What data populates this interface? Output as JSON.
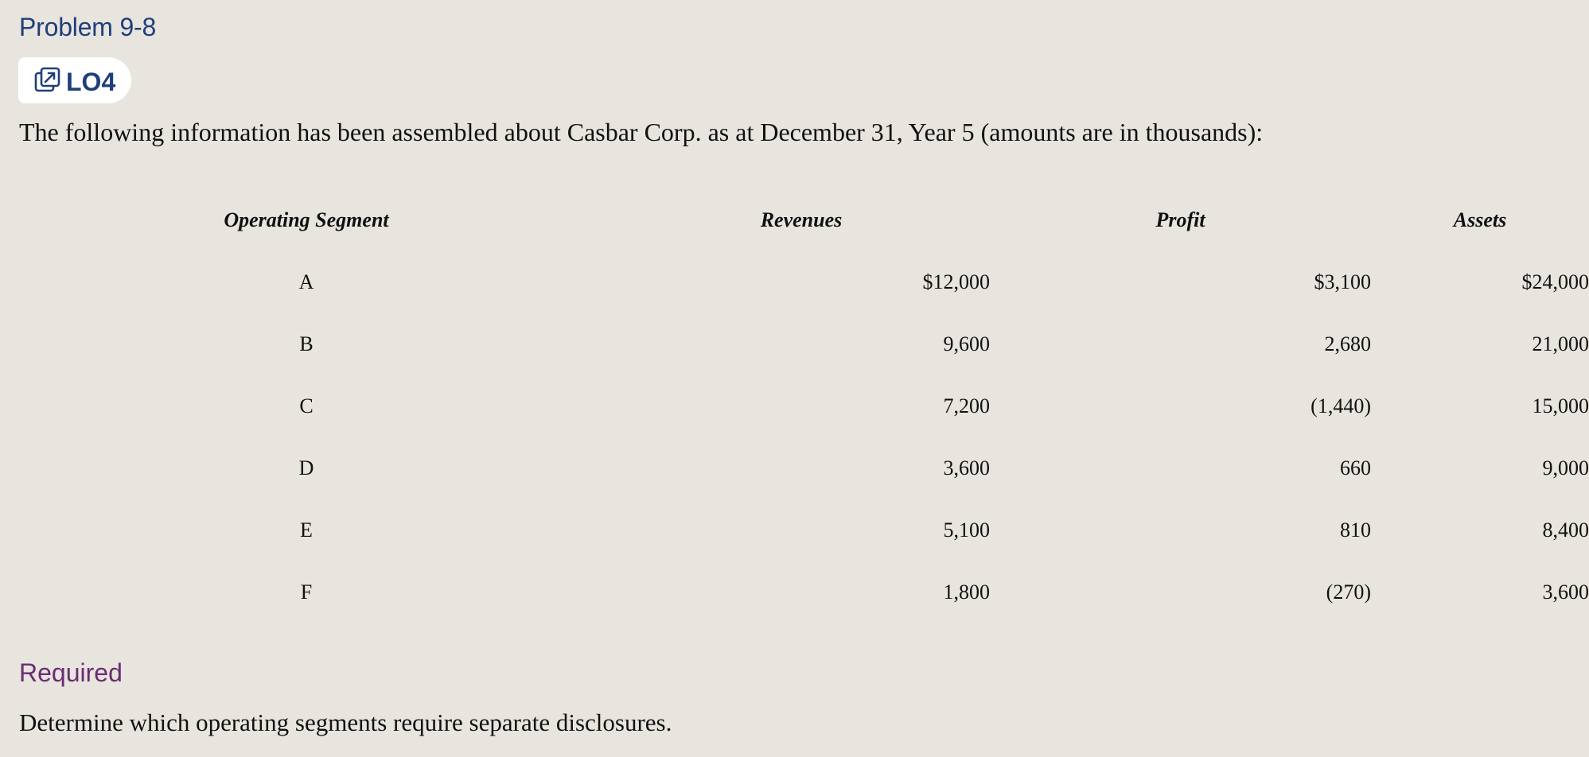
{
  "problem": {
    "title": "Problem 9-8",
    "lo_badge": {
      "label": "LO4",
      "icon": "external-link-icon"
    }
  },
  "intro_text": "The following information has been assembled about Casbar Corp. as at December 31, Year 5 (amounts are in thousands):",
  "table": {
    "headers": [
      "Operating Segment",
      "Revenues",
      "Profit",
      "Assets"
    ],
    "rows": [
      [
        "A",
        "$12,000",
        "$3,100",
        "$24,000"
      ],
      [
        "B",
        "9,600",
        "2,680",
        "21,000"
      ],
      [
        "C",
        "7,200",
        "(1,440)",
        "15,000"
      ],
      [
        "D",
        "3,600",
        "660",
        "9,000"
      ],
      [
        "E",
        "5,100",
        "810",
        "8,400"
      ],
      [
        "F",
        "1,800",
        "(270)",
        "3,600"
      ]
    ]
  },
  "required": {
    "heading": "Required",
    "text": "Determine which operating segments require separate disclosures."
  },
  "colors": {
    "background": "#e8e4de",
    "title": "#1f3f7a",
    "required_heading": "#6b2c73"
  }
}
